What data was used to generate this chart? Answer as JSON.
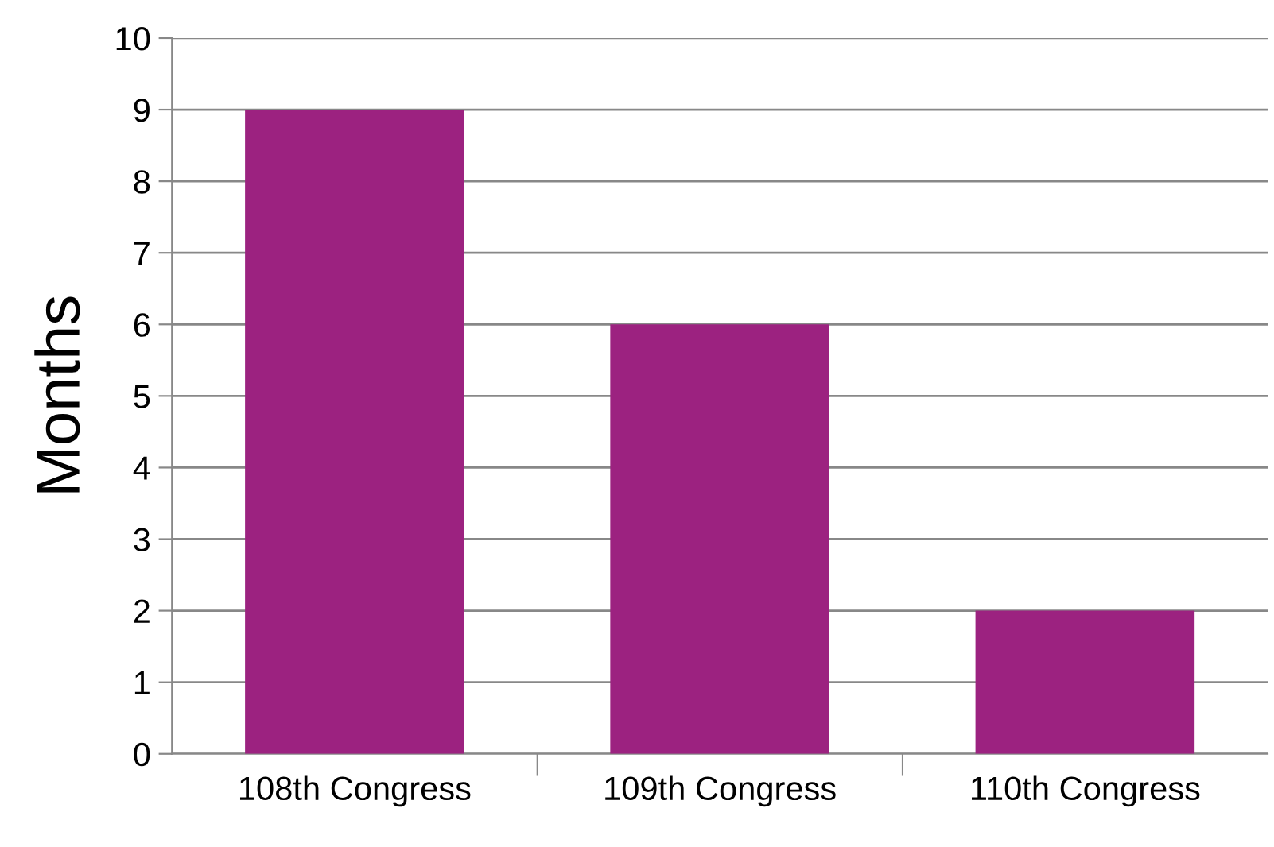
{
  "chart_data": {
    "type": "bar",
    "ylabel": "Months",
    "categories": [
      "108th Congress",
      "109th Congress",
      "110th Congress"
    ],
    "values": [
      9,
      6,
      2
    ],
    "color": "#9c2280",
    "ylim": [
      0,
      10
    ],
    "yticks": [
      0,
      1,
      2,
      3,
      4,
      5,
      6,
      7,
      8,
      9,
      10
    ],
    "grid": "y",
    "legend": false
  }
}
